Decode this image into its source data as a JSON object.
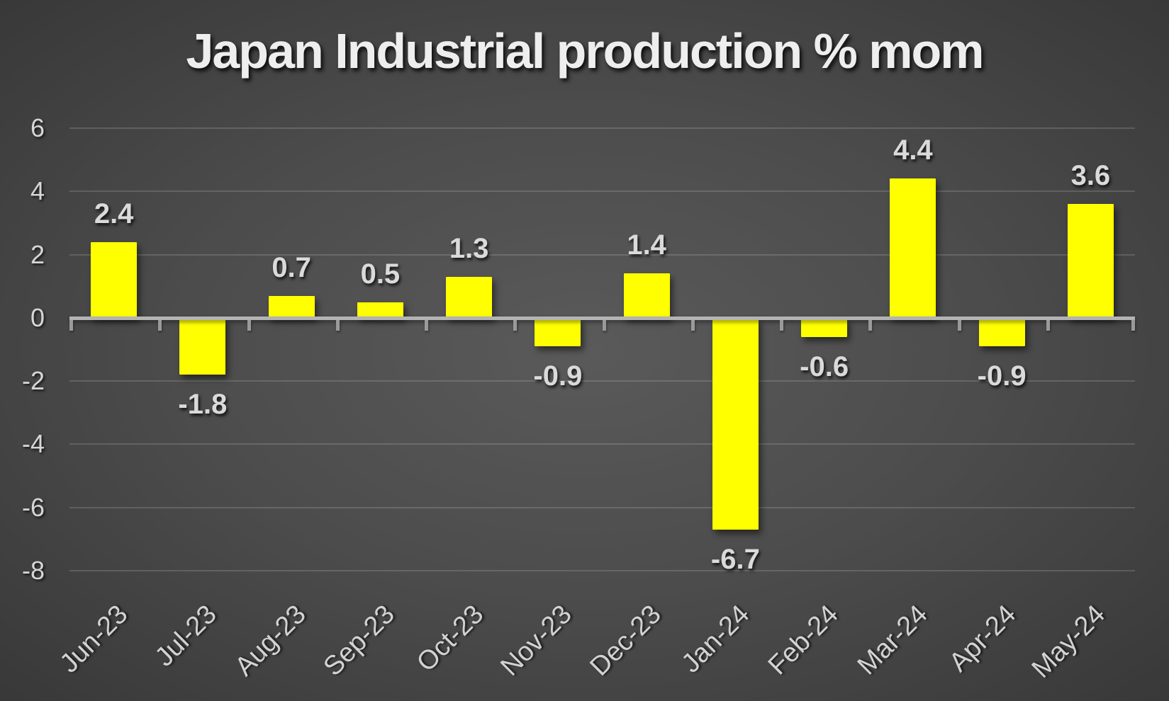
{
  "title": "Japan Industrial production % mom",
  "colors": {
    "bar": "#ffff00",
    "title_text": "#eeeeee",
    "axis_label_text": "#d6d6d6",
    "data_label_text": "#dadada",
    "gridline": "rgba(255,255,255,0.15)",
    "axis_line": "#b4b4b4",
    "tick": "#9a9a9a",
    "background_center": "#5a5a5a",
    "background_edge": "#222222"
  },
  "chart_data": {
    "type": "bar",
    "title": "Japan Industrial production % mom",
    "categories": [
      "Jun-23",
      "Jul-23",
      "Aug-23",
      "Sep-23",
      "Oct-23",
      "Nov-23",
      "Dec-23",
      "Jan-24",
      "Feb-24",
      "Mar-24",
      "Apr-24",
      "May-24"
    ],
    "values": [
      2.4,
      -1.8,
      0.7,
      0.5,
      1.3,
      -0.9,
      1.4,
      -6.7,
      -0.6,
      4.4,
      -0.9,
      3.6
    ],
    "data_labels": [
      "2.4",
      "-1.8",
      "0.7",
      "0.5",
      "1.3",
      "-0.9",
      "1.4",
      "-6.7",
      "-0.6",
      "4.4",
      "-0.9",
      "3.6"
    ],
    "xlabel": "",
    "ylabel": "",
    "ylim": [
      -8,
      6
    ],
    "yticks": [
      6,
      4,
      2,
      0,
      -2,
      -4,
      -6,
      -8
    ],
    "grid": true,
    "legend": false,
    "bar_color": "#ffff00",
    "data_labels_shown": true
  }
}
